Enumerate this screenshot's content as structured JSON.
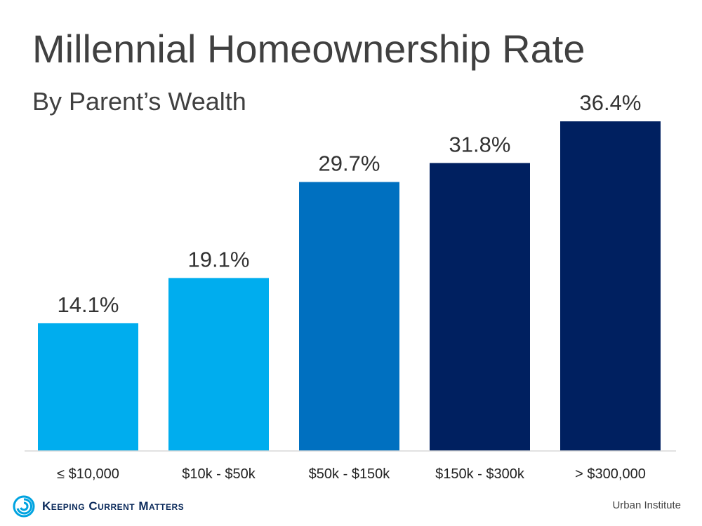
{
  "header": {
    "title": "Millennial Homeownership Rate",
    "subtitle": "By Parent’s Wealth"
  },
  "chart_data": {
    "type": "bar",
    "title": "Millennial Homeownership Rate",
    "subtitle": "By Parent’s Wealth",
    "categories": [
      "≤ $10,000",
      "$10k - $50k",
      "$50k - $150k",
      "$150k - $300k",
      "> $300,000"
    ],
    "values": [
      14.1,
      19.1,
      29.7,
      31.8,
      36.4
    ],
    "value_labels": [
      "14.1%",
      "19.1%",
      "29.7%",
      "31.8%",
      "36.4%"
    ],
    "bar_colors": [
      "#00adee",
      "#00adee",
      "#0070c0",
      "#002060",
      "#002060"
    ],
    "xlabel": "",
    "ylabel": "",
    "ylim": [
      0,
      36.4
    ],
    "grid": false,
    "legend": "none"
  },
  "footer": {
    "brand": "Keeping Current Matters",
    "brand_icon": "swirl-logo-icon",
    "source": "Urban Institute"
  },
  "colors": {
    "text": "#404040",
    "axis": "#d9d9d9",
    "brand": "#0b2a5b",
    "logo": "#00a3e0"
  }
}
